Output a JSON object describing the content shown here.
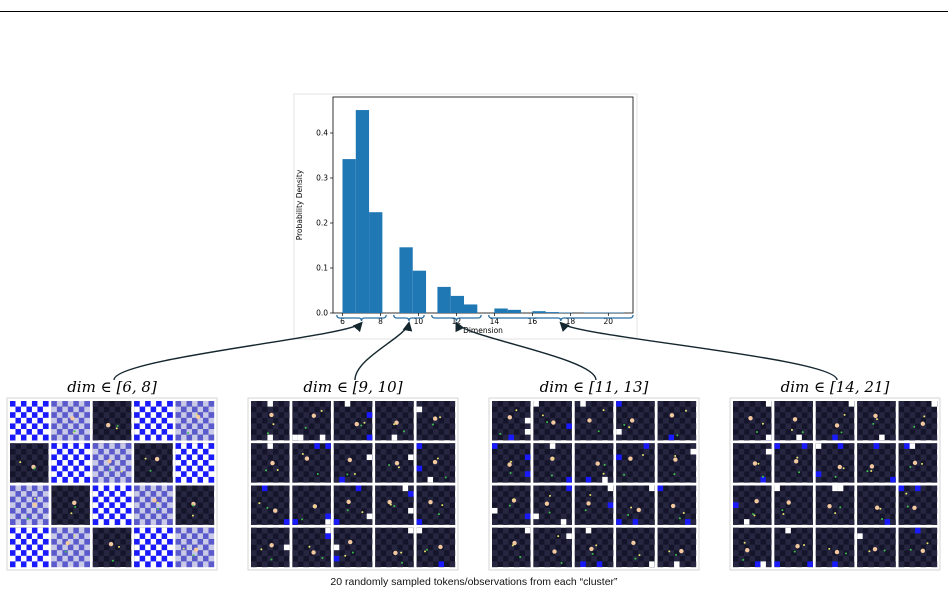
{
  "chart_data": {
    "type": "bar",
    "xlabel": "Dimension",
    "ylabel": "Probability Density",
    "xlim": [
      5.5,
      21.3
    ],
    "ylim": [
      0,
      0.48
    ],
    "xticks": [
      6,
      8,
      10,
      12,
      14,
      16,
      18,
      20
    ],
    "yticks": [
      0.0,
      0.1,
      0.2,
      0.3,
      0.4
    ],
    "bar_width": 0.7,
    "bar_color": "#1f77b4",
    "grid": false,
    "bars": [
      {
        "x": 6.35,
        "value": 0.342
      },
      {
        "x": 7.05,
        "value": 0.451
      },
      {
        "x": 7.75,
        "value": 0.224
      },
      {
        "x": 9.35,
        "value": 0.146
      },
      {
        "x": 10.05,
        "value": 0.094
      },
      {
        "x": 11.35,
        "value": 0.058
      },
      {
        "x": 12.05,
        "value": 0.038
      },
      {
        "x": 12.75,
        "value": 0.019
      },
      {
        "x": 14.35,
        "value": 0.01
      },
      {
        "x": 15.05,
        "value": 0.007
      },
      {
        "x": 16.35,
        "value": 0.004
      },
      {
        "x": 17.05,
        "value": 0.002
      },
      {
        "x": 17.75,
        "value": 0.001
      },
      {
        "x": 19.05,
        "value": 0.001
      },
      {
        "x": 19.75,
        "value": 0.001
      },
      {
        "x": 20.45,
        "value": 0.001
      }
    ]
  },
  "clusters": [
    {
      "label": "dim ∈ [6, 8]",
      "range": [
        6,
        8
      ]
    },
    {
      "label": "dim ∈ [9, 10]",
      "range": [
        9,
        10
      ]
    },
    {
      "label": "dim ∈ [11, 13]",
      "range": [
        11,
        13
      ]
    },
    {
      "label": "dim ∈ [14, 21]",
      "range": [
        14,
        21
      ]
    }
  ],
  "caption": "20 randomly sampled tokens/observations from each “cluster”",
  "colors": {
    "board_dark": "#14142a",
    "board_cell": "#262640",
    "wall": "#1a1aff",
    "arrow": "#14262e"
  }
}
